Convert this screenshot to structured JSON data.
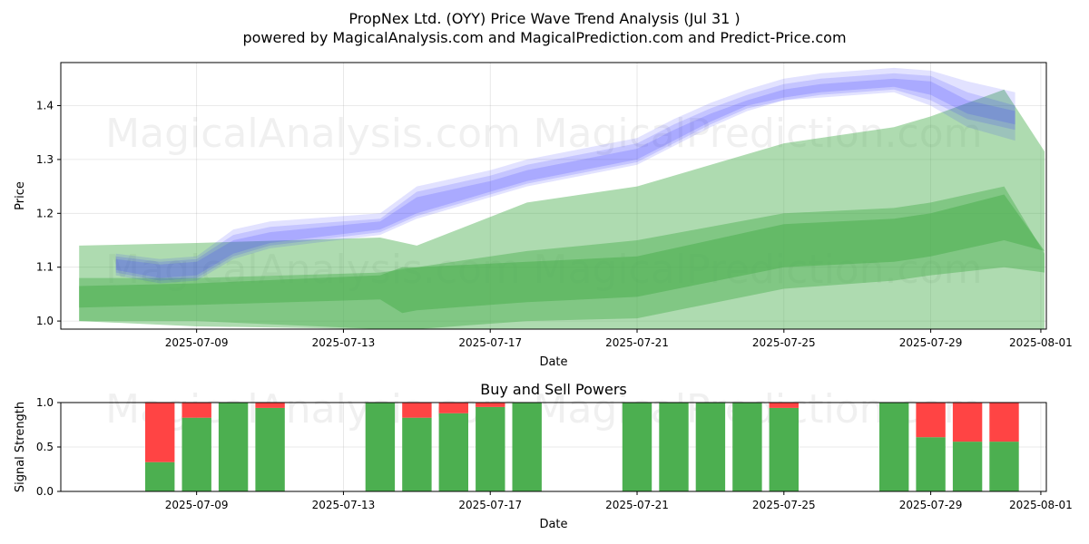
{
  "chart_data": [
    {
      "type": "area",
      "title": "PropNex Ltd. (OYY) Price Wave Trend Analysis (Jul 31 )",
      "subtitle": "powered by MagicalAnalysis.com and MagicalPrediction.com and Predict-Price.com",
      "xlabel": "Date",
      "ylabel": "Price",
      "xlim": [
        "2025-07-05",
        "2025-08-01"
      ],
      "ylim": [
        0.985,
        1.48
      ],
      "x_ticks": [
        "2025-07-09",
        "2025-07-13",
        "2025-07-17",
        "2025-07-21",
        "2025-07-25",
        "2025-07-29",
        "2025-08-01"
      ],
      "y_ticks": [
        1.0,
        1.1,
        1.2,
        1.3,
        1.4
      ],
      "grid": true,
      "watermarks": [
        "MagicalAnalysis.com",
        "MagicalPrediction.com"
      ],
      "green_bands": [
        {
          "color": "#4caf50",
          "opacity": 0.45,
          "x": [
            "2025-07-05.8",
            "2025-07-09",
            "2025-07-14",
            "2025-07-15",
            "2025-07-18",
            "2025-07-21",
            "2025-07-25",
            "2025-07-28",
            "2025-07-29",
            "2025-07-31",
            "2025-08-01.1"
          ],
          "upper": [
            1.14,
            1.145,
            1.155,
            1.14,
            1.22,
            1.25,
            1.33,
            1.36,
            1.38,
            1.43,
            1.315
          ],
          "lower": [
            1.0,
            1.0,
            0.985,
            0.985,
            0.985,
            0.985,
            0.985,
            0.985,
            0.985,
            0.985,
            0.985
          ]
        },
        {
          "color": "#4caf50",
          "opacity": 0.45,
          "x": [
            "2025-07-05.8",
            "2025-07-09",
            "2025-07-14",
            "2025-07-15",
            "2025-07-18",
            "2025-07-21",
            "2025-07-25",
            "2025-07-28",
            "2025-07-29",
            "2025-07-31",
            "2025-08-01.1"
          ],
          "upper": [
            1.08,
            1.08,
            1.09,
            1.1,
            1.13,
            1.15,
            1.2,
            1.21,
            1.22,
            1.25,
            1.125
          ],
          "lower": [
            1.0,
            0.99,
            0.985,
            0.985,
            1.0,
            1.005,
            1.06,
            1.075,
            1.085,
            1.1,
            1.09
          ]
        },
        {
          "color": "#4caf50",
          "opacity": 0.55,
          "x": [
            "2025-07-05.8",
            "2025-07-09",
            "2025-07-14",
            "2025-07-14.6",
            "2025-07-15",
            "2025-07-18",
            "2025-07-21",
            "2025-07-25",
            "2025-07-28",
            "2025-07-29",
            "2025-07-31",
            "2025-08-01.1"
          ],
          "upper": [
            1.065,
            1.07,
            1.085,
            1.1,
            1.1,
            1.11,
            1.12,
            1.18,
            1.19,
            1.2,
            1.235,
            1.13
          ],
          "lower": [
            1.025,
            1.03,
            1.04,
            1.015,
            1.02,
            1.035,
            1.045,
            1.1,
            1.11,
            1.12,
            1.15,
            1.13
          ]
        }
      ],
      "blue_bands": [
        {
          "color": "#3333ff",
          "opacity": 0.14,
          "x": [
            "2025-07-06.8",
            "2025-07-08",
            "2025-07-09",
            "2025-07-10",
            "2025-07-11",
            "2025-07-14",
            "2025-07-15",
            "2025-07-16",
            "2025-07-17",
            "2025-07-18",
            "2025-07-21",
            "2025-07-22",
            "2025-07-23",
            "2025-07-24",
            "2025-07-25",
            "2025-07-26",
            "2025-07-28",
            "2025-07-29",
            "2025-07-30",
            "2025-07-31.3"
          ],
          "upper": [
            1.125,
            1.115,
            1.12,
            1.17,
            1.185,
            1.2,
            1.25,
            1.265,
            1.28,
            1.3,
            1.34,
            1.375,
            1.405,
            1.43,
            1.45,
            1.46,
            1.47,
            1.465,
            1.445,
            1.425
          ],
          "lower": [
            1.085,
            1.07,
            1.075,
            1.115,
            1.135,
            1.16,
            1.19,
            1.21,
            1.23,
            1.25,
            1.29,
            1.325,
            1.36,
            1.39,
            1.41,
            1.415,
            1.425,
            1.4,
            1.36,
            1.335
          ]
        },
        {
          "color": "#3333ff",
          "opacity": 0.16,
          "x": [
            "2025-07-06.8",
            "2025-07-08",
            "2025-07-09",
            "2025-07-10",
            "2025-07-11",
            "2025-07-14",
            "2025-07-15",
            "2025-07-16",
            "2025-07-17",
            "2025-07-18",
            "2025-07-21",
            "2025-07-22",
            "2025-07-23",
            "2025-07-24",
            "2025-07-25",
            "2025-07-26",
            "2025-07-28",
            "2025-07-29",
            "2025-07-30",
            "2025-07-31.3"
          ],
          "upper": [
            1.12,
            1.11,
            1.115,
            1.16,
            1.175,
            1.19,
            1.24,
            1.255,
            1.27,
            1.29,
            1.33,
            1.365,
            1.395,
            1.42,
            1.44,
            1.45,
            1.46,
            1.455,
            1.425,
            1.4
          ],
          "lower": [
            1.09,
            1.075,
            1.08,
            1.12,
            1.14,
            1.165,
            1.195,
            1.215,
            1.235,
            1.255,
            1.295,
            1.33,
            1.365,
            1.395,
            1.41,
            1.42,
            1.43,
            1.41,
            1.375,
            1.355
          ]
        },
        {
          "color": "#3333ff",
          "opacity": 0.18,
          "x": [
            "2025-07-06.8",
            "2025-07-08",
            "2025-07-09",
            "2025-07-10",
            "2025-07-11",
            "2025-07-14",
            "2025-07-15",
            "2025-07-16",
            "2025-07-17",
            "2025-07-18",
            "2025-07-21",
            "2025-07-22",
            "2025-07-23",
            "2025-07-24",
            "2025-07-25",
            "2025-07-26",
            "2025-07-28",
            "2025-07-29",
            "2025-07-30",
            "2025-07-31.3"
          ],
          "upper": [
            1.115,
            1.105,
            1.11,
            1.15,
            1.165,
            1.185,
            1.23,
            1.245,
            1.26,
            1.28,
            1.32,
            1.355,
            1.385,
            1.41,
            1.43,
            1.44,
            1.45,
            1.445,
            1.41,
            1.39
          ],
          "lower": [
            1.095,
            1.08,
            1.085,
            1.125,
            1.145,
            1.17,
            1.2,
            1.22,
            1.24,
            1.26,
            1.3,
            1.335,
            1.37,
            1.4,
            1.415,
            1.425,
            1.435,
            1.42,
            1.385,
            1.365
          ]
        }
      ]
    },
    {
      "type": "bar",
      "title": "Buy and Sell Powers",
      "xlabel": "Date",
      "ylabel": "Signal Strength",
      "ylim": [
        0,
        1
      ],
      "y_ticks": [
        "0.0",
        "0.5",
        "1.0"
      ],
      "x_ticks": [
        "2025-07-09",
        "2025-07-13",
        "2025-07-17",
        "2025-07-21",
        "2025-07-25",
        "2025-07-29",
        "2025-08-01"
      ],
      "grid": true,
      "buy_color": "#4caf50",
      "sell_color": "#ff4444",
      "categories": [
        "2025-07-08",
        "2025-07-09",
        "2025-07-10",
        "2025-07-11",
        "2025-07-14",
        "2025-07-15",
        "2025-07-16",
        "2025-07-17",
        "2025-07-18",
        "2025-07-21",
        "2025-07-22",
        "2025-07-23",
        "2025-07-24",
        "2025-07-25",
        "2025-07-28",
        "2025-07-29",
        "2025-07-30",
        "2025-07-31"
      ],
      "series": [
        {
          "values": [
            0.33,
            0.83,
            1.0,
            0.94,
            1.0,
            0.83,
            0.88,
            0.95,
            1.0,
            1.0,
            1.0,
            1.0,
            1.0,
            0.94,
            1.0,
            0.61,
            0.56,
            0.56
          ]
        },
        {
          "values": [
            0.67,
            0.17,
            0.0,
            0.06,
            0.0,
            0.17,
            0.12,
            0.05,
            0.0,
            0.0,
            0.0,
            0.0,
            0.0,
            0.06,
            0.0,
            0.39,
            0.44,
            0.44
          ]
        }
      ]
    }
  ]
}
